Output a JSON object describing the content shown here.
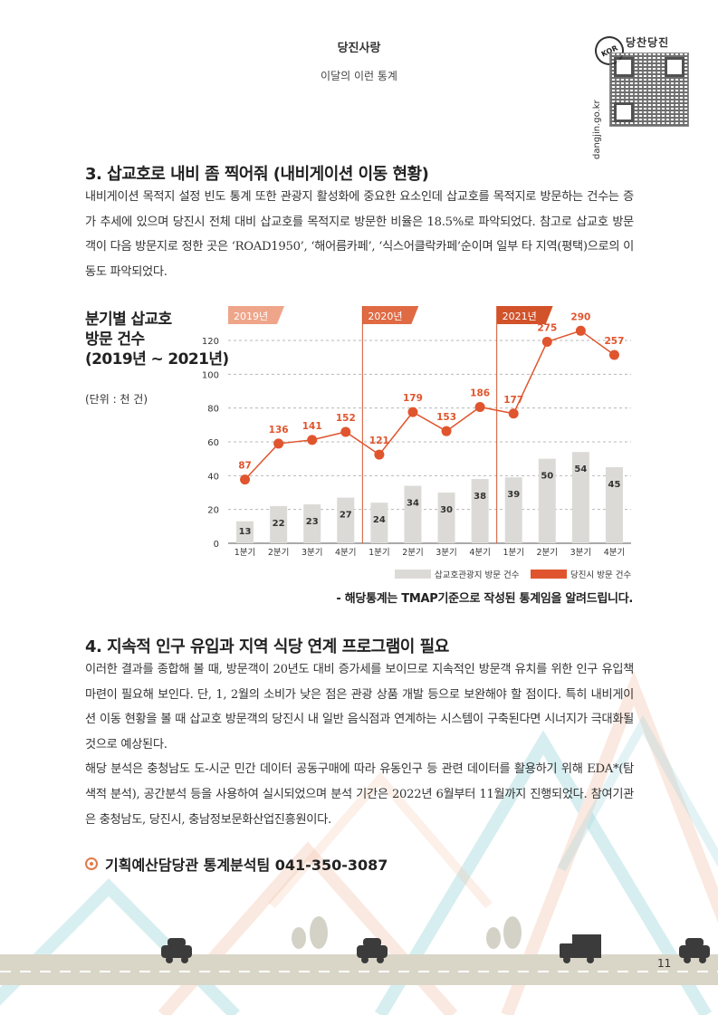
{
  "header": {
    "section": "당진사랑",
    "subtitle": "이달의 이런 통계"
  },
  "badge": {
    "site": "dangjin.go.kr",
    "kor": "KOR",
    "brand": "당찬당진"
  },
  "section3": {
    "title": "3. 삽교호로 내비 좀 찍어줘 (내비게이션 이동 현황)",
    "paragraph": "내비게이션 목적지 설정 빈도 통계 또한 관광지 활성화에 중요한 요소인데 삽교호를 목적지로 방문하는 건수는 증가 추세에 있으며 당진시 전체 대비 삽교호를 목적지로 방문한 비율은 18.5%로 파악되었다. 참고로 삽교호 방문객이 다음 방문지로 정한 곳은 ‘ROAD1950’, ‘해어름카페’, ‘식스어클락카페’순이며 일부 타 지역(평택)으로의 이동도 파악되었다."
  },
  "chart_block": {
    "title_line1": "분기별 삽교호",
    "title_line2": "방문 건수",
    "title_line3": "(2019년 ~ 2021년)",
    "unit": "(단위 : 천 건)",
    "note": "- 해당통계는 TMAP기준으로 작성된 통계임을 알려드립니다."
  },
  "chart_data": {
    "type": "bar",
    "title": "분기별 삽교호 방문 건수 (2019년 ~ 2021년)",
    "unit": "(단위 : 천 건)",
    "year_labels": [
      "2019년",
      "2020년",
      "2021년"
    ],
    "categories": [
      "1분기",
      "2분기",
      "3분기",
      "4분기",
      "1분기",
      "2분기",
      "3분기",
      "4분기",
      "1분기",
      "2분기",
      "3분기",
      "4분기"
    ],
    "ylim": [
      0,
      120
    ],
    "yticks": [
      0,
      20,
      40,
      60,
      80,
      100,
      120
    ],
    "grid": true,
    "legend_position": "bottom-right",
    "series": [
      {
        "name": "삽교호관광지 방문 건수",
        "type": "bar",
        "color": "#dcdad6",
        "values": [
          13,
          22,
          23,
          27,
          24,
          34,
          30,
          38,
          39,
          50,
          54,
          45
        ]
      },
      {
        "name": "당진시 방문 건수",
        "type": "line",
        "color": "#e0552e",
        "axis": "secondary",
        "values": [
          87,
          136,
          141,
          152,
          121,
          179,
          153,
          186,
          177,
          275,
          290,
          257
        ]
      }
    ]
  },
  "section4": {
    "title": "4. 지속적 인구 유입과 지역 식당 연계 프로그램이 필요",
    "paragraph1": "이러한 결과를 종합해 볼 때, 방문객이 20년도 대비 증가세를 보이므로 지속적인 방문객 유치를 위한 인구 유입책 마련이 필요해 보인다. 단, 1, 2월의 소비가 낮은 점은 관광 상품 개발 등으로 보완해야 할 점이다. 특히 내비게이션 이동 현황을 볼 때 삽교호 방문객의 당진시 내 일반 음식점과 연계하는 시스템이 구축된다면 시너지가 극대화될 것으로 예상된다.",
    "paragraph2": "해당 분석은 충청남도 도-시군 민간 데이터 공동구매에 따라 유동인구 등 관련 데이터를 활용하기 위해 EDA*(탐색적 분석), 공간분석 등을 사용하여 실시되었으며 분석 기간은 2022년 6월부터 11월까지 진행되었다. 참여기관은 충청남도, 당진시, 충남정보문화산업진흥원이다."
  },
  "contact": "기획예산담당관 통계분석팀 041-350-3087",
  "page_number": "11"
}
